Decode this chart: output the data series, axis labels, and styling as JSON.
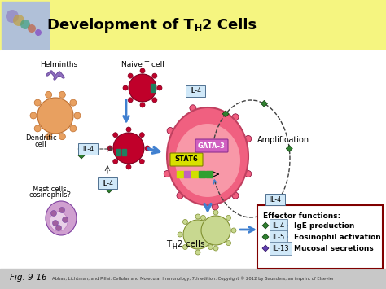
{
  "title_pre": "Development of T",
  "title_sub": "H",
  "title_post": "2 Cells",
  "bg_color": "#f5f580",
  "fig_label": "Fig. 9-16",
  "copyright": "Abbas, Lichtman, and Pillai. Cellular and Molecular Immunology, 7th edition. Copyright © 2012 by Saunders, an imprint of Elsevier",
  "labels": {
    "helminths": "Helminths",
    "naive": "Naive T cell",
    "dendritic_line1": "Dendritic",
    "dendritic_line2": "cell",
    "il4": "IL-4",
    "mast_line1": "Mast cells,",
    "mast_line2": "eosinophils?",
    "amplification": "Amplification",
    "stat6": "STAT6",
    "gata3": "GATA-3",
    "th2_pre": "T",
    "th2_sub": "H",
    "th2_post": "2 cells",
    "effector_title": "Effector functions:",
    "effector_1": "IgE production",
    "effector_2": "Eosinophil activation",
    "effector_3": "Mucosal secretions",
    "il4_eff": "IL-4",
    "il5_eff": "IL-5",
    "il13_eff": "IL-13"
  },
  "colors": {
    "cell_dark_red": "#c0002a",
    "cell_pink_large": "#f06080",
    "cell_pink_inner": "#f898a8",
    "cell_dendritic": "#e8a060",
    "cell_dendritic_edge": "#c07030",
    "cell_mast": "#c890c8",
    "cell_th2": "#c8d890",
    "cell_th2_edge": "#809030",
    "arrow_blue": "#4080d0",
    "il4_box_bg": "#d0e8f8",
    "il4_box_edge": "#507090",
    "stat6_box": "#d8e000",
    "stat6_edge": "#808000",
    "gata3_box": "#d060c0",
    "gata3_edge": "#903090",
    "dna_yellow": "#d0e000",
    "dna_purple": "#c060c0",
    "dna_green": "#30a030",
    "effector_border": "#800000",
    "green_diamond": "#308030",
    "green_diamond_edge": "#104010",
    "purple_diamond": "#6040b0",
    "purple_diamond_edge": "#301060",
    "dashed_color": "#404040",
    "footer_bg": "#c8c8c8",
    "spike_color": "#c04060",
    "spike_edge": "#800030"
  }
}
